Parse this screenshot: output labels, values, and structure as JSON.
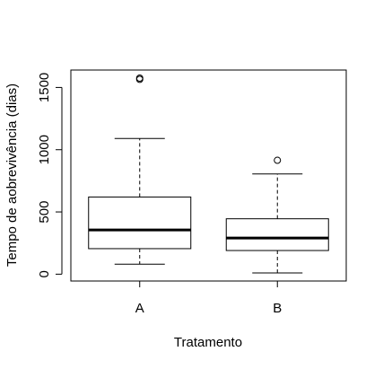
{
  "chart_data": {
    "type": "boxplot",
    "title": "",
    "xlabel": "Tratamento",
    "ylabel": "Tempo de aobrevivência (dias)",
    "ylim": [
      -55,
      1640
    ],
    "yticks": [
      0,
      500,
      1000,
      1500
    ],
    "yticklabels": [
      "0",
      "500",
      "1000",
      "1500"
    ],
    "categories": [
      "A",
      "B"
    ],
    "boxes": [
      {
        "category": "A",
        "whisker_low": 80,
        "q1": 205,
        "median": 355,
        "q3": 620,
        "whisker_high": 1090,
        "outliers": [
          1565,
          1575
        ]
      },
      {
        "category": "B",
        "whisker_low": 10,
        "q1": 190,
        "median": 290,
        "q3": 445,
        "whisker_high": 805,
        "outliers": [
          915
        ]
      }
    ],
    "grid": false
  }
}
